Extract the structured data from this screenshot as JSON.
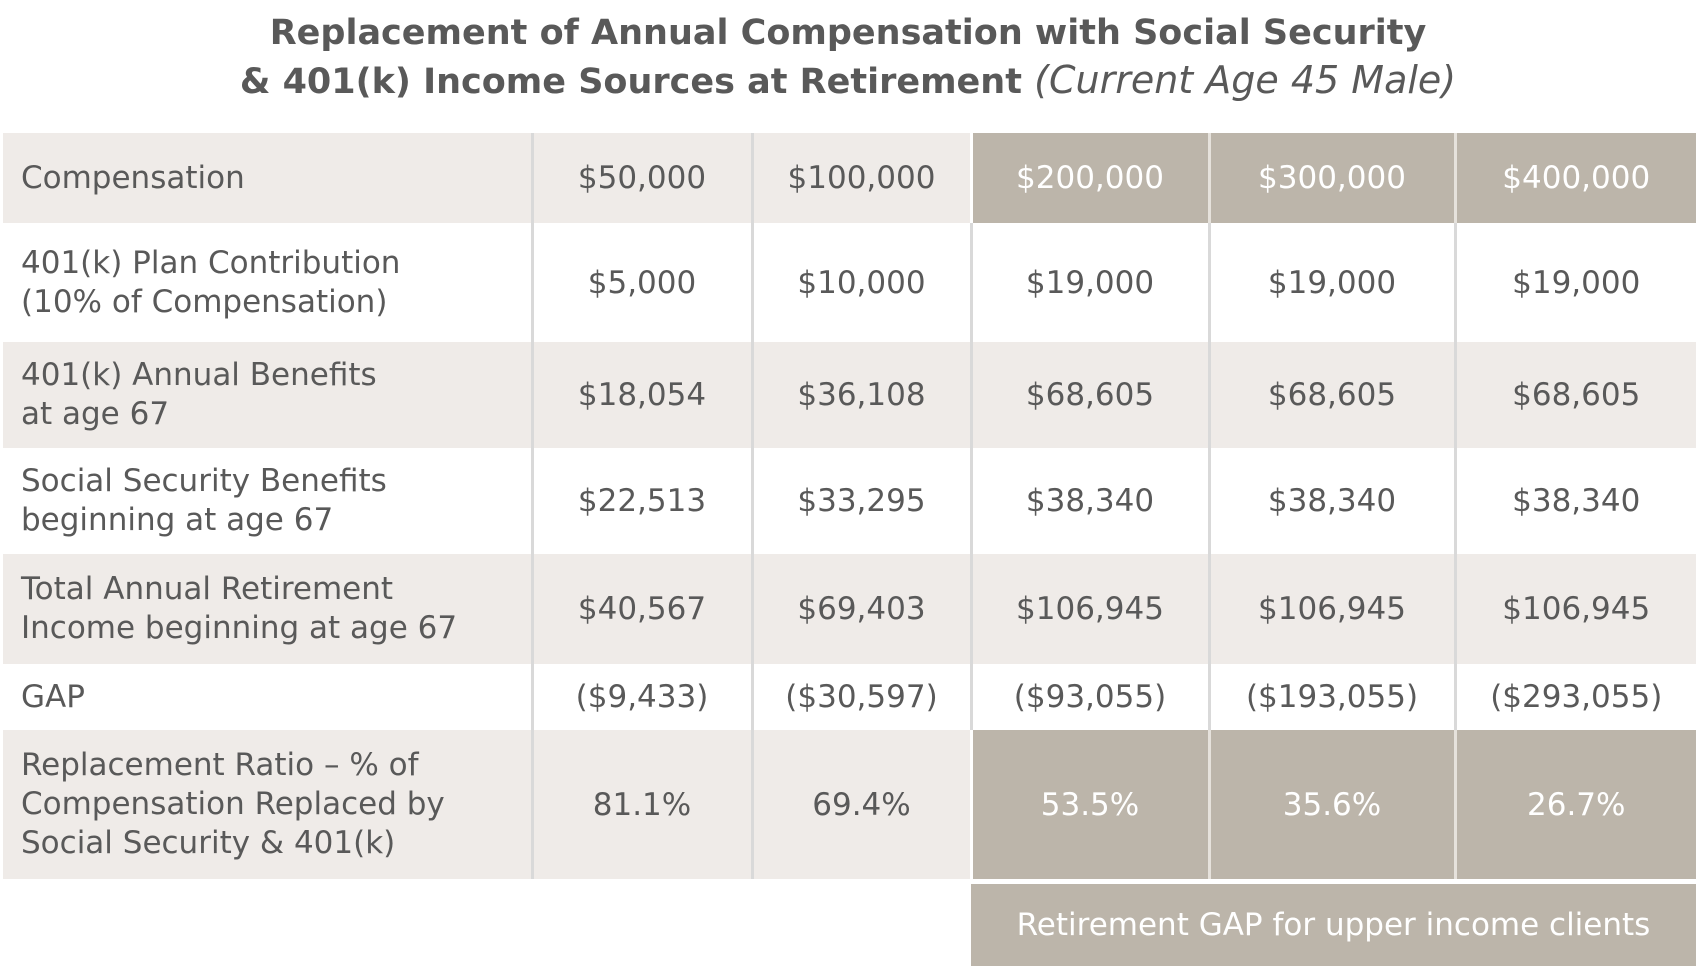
{
  "title": {
    "line1": "Replacement of Annual Compensation with Social Security",
    "line2_bold": "& 401(k) Income Sources at Retirement ",
    "line2_italic": "(Current Age 45 Male)"
  },
  "table": {
    "rows": [
      {
        "label": "Compensation",
        "values": [
          "$50,000",
          "$100,000",
          "$200,000",
          "$300,000",
          "$400,000"
        ]
      },
      {
        "label_lines": [
          "401(k) Plan Contribution",
          "(10% of Compensation)"
        ],
        "values": [
          "$5,000",
          "$10,000",
          "$19,000",
          "$19,000",
          "$19,000"
        ]
      },
      {
        "label_lines": [
          "401(k) Annual Benefits",
          "at age 67"
        ],
        "values": [
          "$18,054",
          "$36,108",
          "$68,605",
          "$68,605",
          "$68,605"
        ]
      },
      {
        "label_lines": [
          "Social Security Benefits",
          "beginning at age 67"
        ],
        "values": [
          "$22,513",
          "$33,295",
          "$38,340",
          "$38,340",
          "$38,340"
        ]
      },
      {
        "label_lines": [
          "Total Annual Retirement",
          "Income beginning at age 67"
        ],
        "values": [
          "$40,567",
          "$69,403",
          "$106,945",
          "$106,945",
          "$106,945"
        ]
      },
      {
        "label": "GAP",
        "values": [
          "($9,433)",
          "($30,597)",
          "($93,055)",
          "($193,055)",
          "($293,055)"
        ]
      },
      {
        "label_lines": [
          "Replacement Ratio – % of",
          "Compensation Replaced by",
          "Social Security & 401(k)"
        ],
        "values": [
          "81.1%",
          "69.4%",
          "53.5%",
          "35.6%",
          "26.7%"
        ]
      }
    ]
  },
  "banner": {
    "text": "Retirement GAP for upper income clients"
  },
  "colors": {
    "highlight": "#bcb5aa",
    "shade": "#efebe8",
    "text": "#595959"
  }
}
